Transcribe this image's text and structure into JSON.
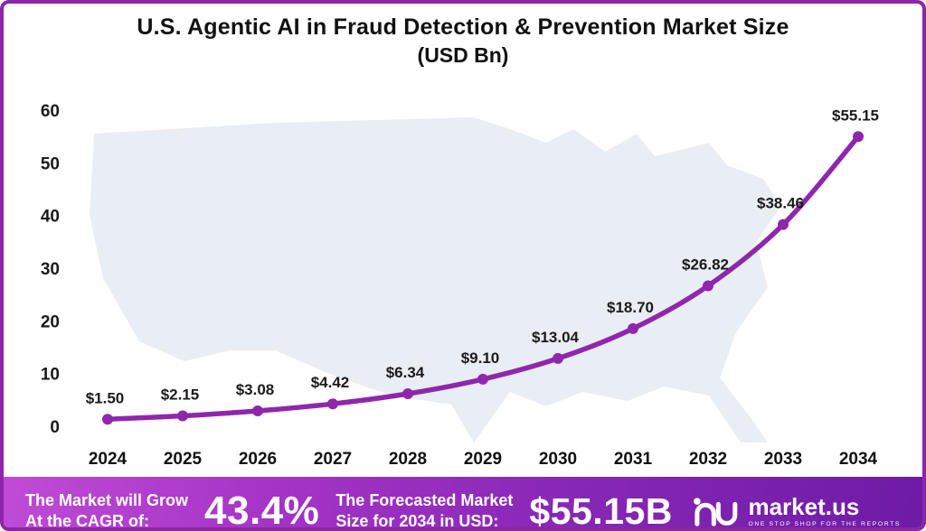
{
  "title": {
    "line1": "U.S. Agentic AI in Fraud Detection & Prevention Market Size",
    "line2": "(USD Bn)"
  },
  "chart_data": {
    "type": "line",
    "title": "U.S. Agentic AI in Fraud Detection & Prevention Market Size (USD Bn)",
    "categories": [
      "2024",
      "2025",
      "2026",
      "2027",
      "2028",
      "2029",
      "2030",
      "2031",
      "2032",
      "2033",
      "2034"
    ],
    "values": [
      1.5,
      2.15,
      3.08,
      4.42,
      6.34,
      9.1,
      13.04,
      18.7,
      26.82,
      38.46,
      55.15
    ],
    "point_labels": [
      "$1.50",
      "$2.15",
      "$3.08",
      "$4.42",
      "$6.34",
      "$9.10",
      "$13.04",
      "$18.70",
      "$26.82",
      "$38.46",
      "$55.15"
    ],
    "xlabel": "",
    "ylabel": "",
    "ylim": [
      0,
      60
    ],
    "ytick_interval": 10,
    "grid": false,
    "legend": "none",
    "line_color": "#8f27ad",
    "marker_color": "#8f27ad",
    "map_background_color": "#e9edf4"
  },
  "banner": {
    "cagr_label_line1": "The Market will Grow",
    "cagr_label_line2": "At the CAGR of:",
    "cagr_value": "43.4%",
    "forecast_label_line1": "The Forecasted Market",
    "forecast_label_line2": "Size for 2034 in USD:",
    "forecast_value": "$55.15B",
    "logo_text": "market.us",
    "logo_tagline": "ONE STOP SHOP FOR THE REPORTS"
  }
}
